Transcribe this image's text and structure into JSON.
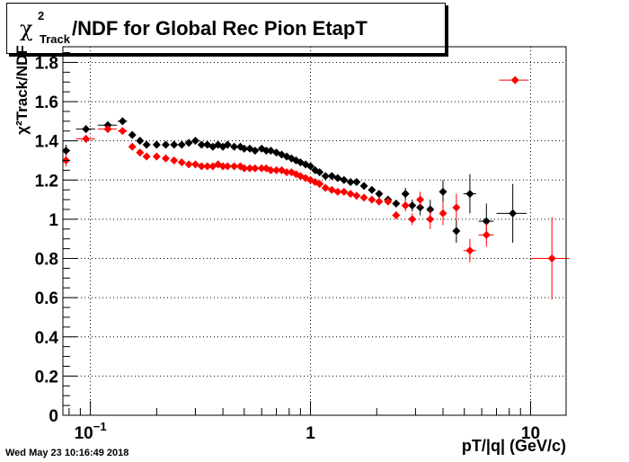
{
  "title": {
    "symbol": "χ",
    "superscript": "2",
    "subscript": "Track",
    "text": "/NDF for Global Rec Pion EtapT"
  },
  "timestamp": "Wed May 23 10:16:49 2018",
  "chart_data": {
    "type": "scatter",
    "xlabel": "pT/|q| (GeV/c)",
    "ylabel": "χ²Track/NDF",
    "xscale": "log",
    "xlim": [
      0.075,
      14.5
    ],
    "ylim": [
      0,
      1.88
    ],
    "grid": true,
    "x_tick_labels": [
      {
        "value": 0.1,
        "label": "10",
        "sup": "−1"
      },
      {
        "value": 1,
        "label": "1"
      },
      {
        "value": 10,
        "label": "10"
      }
    ],
    "y_tick_labels": [
      "0",
      "0.2",
      "0.4",
      "0.6",
      "0.8",
      "1",
      "1.2",
      "1.4",
      "1.6",
      "1.8"
    ],
    "series": [
      {
        "color": "#000000",
        "points": [
          {
            "x": 0.0775,
            "y": 1.35,
            "ex": 0.0025,
            "ey": 0.03
          },
          {
            "x": 0.0955,
            "y": 1.46,
            "ex": 0.0095,
            "ey": 0.02
          },
          {
            "x": 0.12,
            "y": 1.48,
            "ex": 0.012,
            "ey": 0.015
          },
          {
            "x": 0.14,
            "y": 1.5,
            "ex": 0.007,
            "ey": 0.01
          },
          {
            "x": 0.155,
            "y": 1.43,
            "ex": 0.004,
            "ey": 0.01
          },
          {
            "x": 0.168,
            "y": 1.4,
            "ex": 0.004,
            "ey": 0.01
          },
          {
            "x": 0.18,
            "y": 1.38,
            "ex": 0.004,
            "ey": 0.01
          },
          {
            "x": 0.2,
            "y": 1.38,
            "ex": 0.004,
            "ey": 0.01
          },
          {
            "x": 0.22,
            "y": 1.38
          },
          {
            "x": 0.24,
            "y": 1.38
          },
          {
            "x": 0.26,
            "y": 1.38
          },
          {
            "x": 0.28,
            "y": 1.39
          },
          {
            "x": 0.3,
            "y": 1.4
          },
          {
            "x": 0.32,
            "y": 1.38
          },
          {
            "x": 0.34,
            "y": 1.38
          },
          {
            "x": 0.36,
            "y": 1.37
          },
          {
            "x": 0.38,
            "y": 1.38
          },
          {
            "x": 0.4,
            "y": 1.37
          },
          {
            "x": 0.42,
            "y": 1.38
          },
          {
            "x": 0.45,
            "y": 1.37
          },
          {
            "x": 0.48,
            "y": 1.37
          },
          {
            "x": 0.5,
            "y": 1.36
          },
          {
            "x": 0.53,
            "y": 1.36
          },
          {
            "x": 0.56,
            "y": 1.35
          },
          {
            "x": 0.6,
            "y": 1.36
          },
          {
            "x": 0.63,
            "y": 1.35
          },
          {
            "x": 0.66,
            "y": 1.35
          },
          {
            "x": 0.7,
            "y": 1.34
          },
          {
            "x": 0.74,
            "y": 1.33
          },
          {
            "x": 0.78,
            "y": 1.32
          },
          {
            "x": 0.82,
            "y": 1.31
          },
          {
            "x": 0.86,
            "y": 1.3
          },
          {
            "x": 0.9,
            "y": 1.29
          },
          {
            "x": 0.95,
            "y": 1.28
          },
          {
            "x": 1.0,
            "y": 1.27
          },
          {
            "x": 1.05,
            "y": 1.25
          },
          {
            "x": 1.1,
            "y": 1.24
          },
          {
            "x": 1.17,
            "y": 1.22
          },
          {
            "x": 1.25,
            "y": 1.22
          },
          {
            "x": 1.33,
            "y": 1.21
          },
          {
            "x": 1.42,
            "y": 1.2
          },
          {
            "x": 1.52,
            "y": 1.19
          },
          {
            "x": 1.62,
            "y": 1.19
          },
          {
            "x": 1.75,
            "y": 1.17
          },
          {
            "x": 1.9,
            "y": 1.15
          },
          {
            "x": 2.05,
            "y": 1.13
          },
          {
            "x": 2.25,
            "y": 1.1
          },
          {
            "x": 2.45,
            "y": 1.08
          },
          {
            "x": 2.7,
            "y": 1.13,
            "ey": 0.03
          },
          {
            "x": 2.9,
            "y": 1.07,
            "ey": 0.03
          },
          {
            "x": 3.15,
            "y": 1.06,
            "ey": 0.04
          },
          {
            "x": 3.5,
            "y": 1.05,
            "ey": 0.05
          },
          {
            "x": 4.0,
            "y": 1.14,
            "ey": 0.06
          },
          {
            "x": 4.6,
            "y": 0.94,
            "ey": 0.06
          },
          {
            "x": 5.3,
            "y": 1.13,
            "ex": 0.35,
            "ey": 0.1
          },
          {
            "x": 6.3,
            "y": 0.99,
            "ex": 0.5,
            "ey": 0.09
          },
          {
            "x": 8.3,
            "y": 1.03,
            "ex": 1.3,
            "ey": 0.15
          }
        ]
      },
      {
        "color": "#ff0000",
        "points": [
          {
            "x": 0.0775,
            "y": 1.3,
            "ex": 0.0025,
            "ey": 0.03
          },
          {
            "x": 0.0955,
            "y": 1.41,
            "ex": 0.0095,
            "ey": 0.02
          },
          {
            "x": 0.12,
            "y": 1.46,
            "ex": 0.012,
            "ey": 0.015
          },
          {
            "x": 0.14,
            "y": 1.45,
            "ex": 0.007,
            "ey": 0.01
          },
          {
            "x": 0.155,
            "y": 1.37,
            "ex": 0.004,
            "ey": 0.01
          },
          {
            "x": 0.168,
            "y": 1.34,
            "ex": 0.004,
            "ey": 0.01
          },
          {
            "x": 0.18,
            "y": 1.32,
            "ex": 0.004,
            "ey": 0.01
          },
          {
            "x": 0.2,
            "y": 1.32
          },
          {
            "x": 0.22,
            "y": 1.31
          },
          {
            "x": 0.24,
            "y": 1.3
          },
          {
            "x": 0.26,
            "y": 1.29
          },
          {
            "x": 0.28,
            "y": 1.28
          },
          {
            "x": 0.3,
            "y": 1.28
          },
          {
            "x": 0.32,
            "y": 1.27
          },
          {
            "x": 0.34,
            "y": 1.27
          },
          {
            "x": 0.36,
            "y": 1.27
          },
          {
            "x": 0.38,
            "y": 1.28
          },
          {
            "x": 0.4,
            "y": 1.27
          },
          {
            "x": 0.42,
            "y": 1.27
          },
          {
            "x": 0.45,
            "y": 1.27
          },
          {
            "x": 0.48,
            "y": 1.27
          },
          {
            "x": 0.5,
            "y": 1.26
          },
          {
            "x": 0.53,
            "y": 1.26
          },
          {
            "x": 0.56,
            "y": 1.26
          },
          {
            "x": 0.6,
            "y": 1.26
          },
          {
            "x": 0.63,
            "y": 1.26
          },
          {
            "x": 0.66,
            "y": 1.25
          },
          {
            "x": 0.7,
            "y": 1.25
          },
          {
            "x": 0.74,
            "y": 1.25
          },
          {
            "x": 0.78,
            "y": 1.24
          },
          {
            "x": 0.82,
            "y": 1.24
          },
          {
            "x": 0.86,
            "y": 1.23
          },
          {
            "x": 0.9,
            "y": 1.22
          },
          {
            "x": 0.95,
            "y": 1.21
          },
          {
            "x": 1.0,
            "y": 1.2
          },
          {
            "x": 1.05,
            "y": 1.19
          },
          {
            "x": 1.1,
            "y": 1.18
          },
          {
            "x": 1.17,
            "y": 1.16
          },
          {
            "x": 1.25,
            "y": 1.15
          },
          {
            "x": 1.33,
            "y": 1.14
          },
          {
            "x": 1.42,
            "y": 1.14
          },
          {
            "x": 1.52,
            "y": 1.13
          },
          {
            "x": 1.62,
            "y": 1.12
          },
          {
            "x": 1.75,
            "y": 1.11
          },
          {
            "x": 1.9,
            "y": 1.1
          },
          {
            "x": 2.05,
            "y": 1.09
          },
          {
            "x": 2.25,
            "y": 1.09
          },
          {
            "x": 2.45,
            "y": 1.02,
            "ey": 0.02
          },
          {
            "x": 2.7,
            "y": 1.07,
            "ey": 0.03
          },
          {
            "x": 2.9,
            "y": 1.0,
            "ey": 0.03
          },
          {
            "x": 3.15,
            "y": 1.1,
            "ey": 0.04
          },
          {
            "x": 3.5,
            "y": 1.0,
            "ey": 0.05
          },
          {
            "x": 4.0,
            "y": 1.03,
            "ey": 0.06
          },
          {
            "x": 4.6,
            "y": 1.06,
            "ey": 0.07
          },
          {
            "x": 5.3,
            "y": 0.84,
            "ex": 0.35,
            "ey": 0.06
          },
          {
            "x": 6.3,
            "y": 0.92,
            "ex": 0.5,
            "ey": 0.06
          },
          {
            "x": 8.5,
            "y": 1.71,
            "ex": 1.3,
            "ey": 0.02
          },
          {
            "x": 12.5,
            "y": 0.8,
            "ex": 2.5,
            "ey": 0.21
          }
        ]
      }
    ]
  }
}
